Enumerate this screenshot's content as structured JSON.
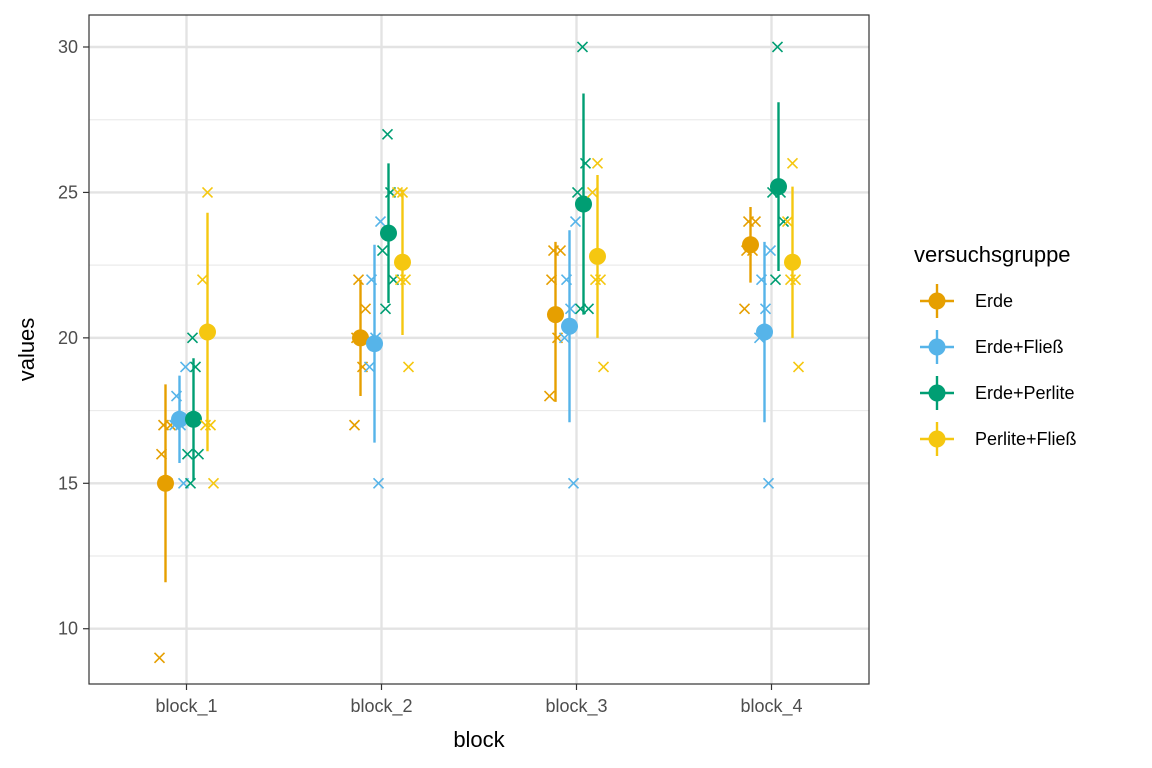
{
  "chart_data": {
    "type": "scatter",
    "xlabel": "block",
    "ylabel": "values",
    "categories": [
      "block_1",
      "block_2",
      "block_3",
      "block_4"
    ],
    "ylim": [
      8.1,
      31.1
    ],
    "yticks": [
      10,
      15,
      20,
      25,
      30
    ],
    "grid": true,
    "legend": {
      "title": "versuchsgruppe",
      "position": "right"
    },
    "series": [
      {
        "name": "Erde",
        "color": "#E69F00",
        "means": [
          15.0,
          20.0,
          20.8,
          23.2
        ],
        "error_low": [
          11.6,
          18.0,
          17.8,
          21.9
        ],
        "error_high": [
          18.4,
          22.0,
          23.3,
          24.5
        ],
        "points": [
          [
            9,
            15,
            16,
            17,
            17
          ],
          [
            17,
            19,
            20,
            21,
            22
          ],
          [
            18,
            20,
            22,
            23,
            23
          ],
          [
            21,
            23,
            23,
            24,
            24
          ]
        ]
      },
      {
        "name": "Erde+Fließ",
        "color": "#56B4E9",
        "means": [
          17.2,
          19.8,
          20.4,
          20.2
        ],
        "error_low": [
          15.7,
          16.4,
          17.1,
          17.1
        ],
        "error_high": [
          18.7,
          23.2,
          23.7,
          23.3
        ],
        "points": [
          [
            15,
            17,
            17,
            18,
            19
          ],
          [
            15,
            19,
            20,
            22,
            24
          ],
          [
            15,
            20,
            21,
            22,
            24
          ],
          [
            15,
            20,
            21,
            22,
            23
          ]
        ]
      },
      {
        "name": "Erde+Perlite",
        "color": "#009E73",
        "means": [
          17.2,
          23.6,
          24.6,
          25.2
        ],
        "error_low": [
          15.1,
          21.2,
          20.8,
          22.3
        ],
        "error_high": [
          19.3,
          26.0,
          28.4,
          28.1
        ],
        "points": [
          [
            15,
            16,
            16,
            19,
            20
          ],
          [
            21,
            22,
            23,
            25,
            27
          ],
          [
            21,
            21,
            25,
            26,
            30
          ],
          [
            22,
            24,
            25,
            25,
            30
          ]
        ]
      },
      {
        "name": "Perlite+Fließ",
        "color": "#F5C710",
        "means": [
          20.2,
          22.6,
          22.8,
          22.6
        ],
        "error_low": [
          16.1,
          20.1,
          20.0,
          20.0
        ],
        "error_high": [
          24.3,
          25.1,
          25.6,
          25.2
        ],
        "points": [
          [
            15,
            17,
            17,
            22,
            25
          ],
          [
            19,
            22,
            22,
            25,
            25
          ],
          [
            19,
            22,
            22,
            25,
            26
          ],
          [
            19,
            22,
            22,
            24,
            26
          ]
        ]
      }
    ]
  }
}
